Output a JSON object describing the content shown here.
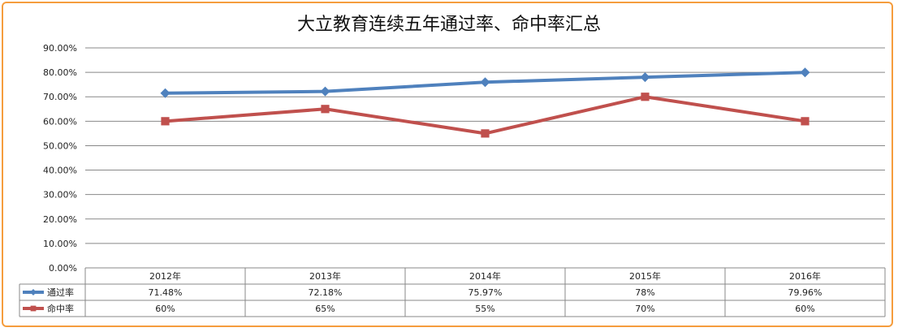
{
  "chart_data": {
    "type": "line",
    "title": "大立教育连续五年通过率、命中率汇总",
    "categories": [
      "2012年",
      "2013年",
      "2014年",
      "2015年",
      "2016年"
    ],
    "ylim": [
      0,
      0.9
    ],
    "y_ticks": [
      "0.00%",
      "10.00%",
      "20.00%",
      "30.00%",
      "40.00%",
      "50.00%",
      "60.00%",
      "70.00%",
      "80.00%",
      "90.00%"
    ],
    "grid": true,
    "legend": "data-table",
    "series": [
      {
        "name": "通过率",
        "color": "#4F81BD",
        "marker": "diamond",
        "values": [
          0.7148,
          0.7218,
          0.7597,
          0.78,
          0.7996
        ],
        "labels": [
          "71.48%",
          "72.18%",
          "75.97%",
          "78%",
          "79.96%"
        ]
      },
      {
        "name": "命中率",
        "color": "#C0504D",
        "marker": "square",
        "values": [
          0.6,
          0.65,
          0.55,
          0.7,
          0.6
        ],
        "labels": [
          "60%",
          "65%",
          "55%",
          "70%",
          "60%"
        ]
      }
    ]
  }
}
